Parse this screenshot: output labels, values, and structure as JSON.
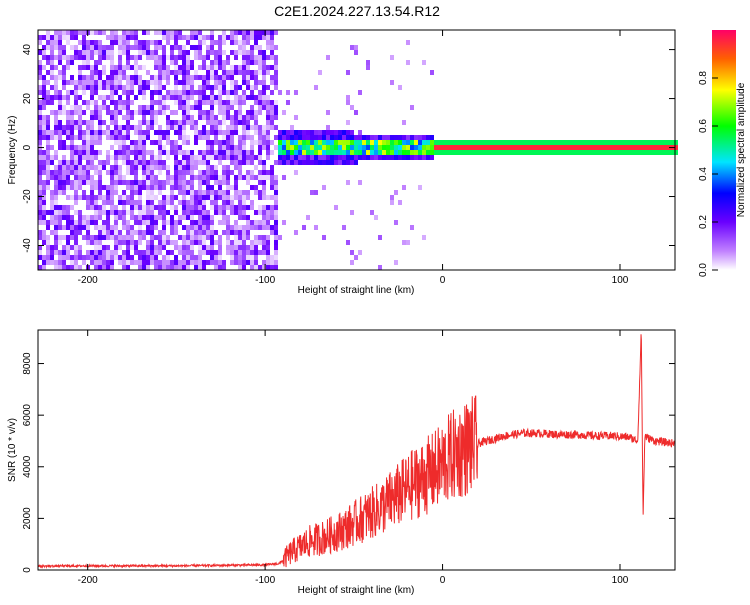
{
  "title": "C2E1.2024.227.13.54.R12",
  "chart_data": [
    {
      "type": "heatmap",
      "xlabel": "Height of straight line (km)",
      "ylabel": "Frequency (Hz)",
      "xlim": [
        -228,
        131
      ],
      "ylim": [
        -50,
        48
      ],
      "xticks": [
        -200,
        -100,
        0,
        100
      ],
      "yticks": [
        -40,
        -20,
        0,
        20,
        40
      ],
      "colorbar": {
        "label": "Normalized spectral amplitude",
        "range": [
          0,
          1
        ],
        "ticks": [
          0.0,
          0.2,
          0.4,
          0.6,
          0.8
        ],
        "tick_labels": [
          "0.0",
          "0.2",
          "0.4",
          "0.6",
          "0.8"
        ],
        "colormap": [
          "#ffffff",
          "#8a2be2",
          "#0000ff",
          "#00ffff",
          "#00ff00",
          "#ffff00",
          "#ff0000"
        ]
      },
      "regions": [
        {
          "x": [
            -228,
            -92
          ],
          "pattern": "broadband noise",
          "level": 0.15
        },
        {
          "x": [
            -92,
            -5
          ],
          "pattern": "signal near 0 Hz with spread",
          "level": 0.45
        },
        {
          "x": [
            -5,
            131
          ],
          "pattern": "narrow line at 0 Hz",
          "level": 0.95
        }
      ]
    },
    {
      "type": "line",
      "xlabel": "Height of straight line (km)",
      "ylabel": "SNR (10 * v/v)",
      "xlim": [
        -228,
        131
      ],
      "ylim": [
        0,
        9300
      ],
      "xticks": [
        -200,
        -100,
        0,
        100
      ],
      "yticks": [
        0,
        2000,
        4000,
        6000,
        8000
      ],
      "series": [
        {
          "color": "#ee2b2b",
          "x": [
            -228,
            -200,
            -150,
            -100,
            -92,
            -85,
            -75,
            -65,
            -55,
            -45,
            -35,
            -25,
            -15,
            -5,
            5,
            15,
            25,
            35,
            45,
            55,
            65,
            75,
            85,
            95,
            105,
            110,
            112,
            113,
            114,
            116,
            120,
            131
          ],
          "y": [
            150,
            160,
            160,
            200,
            250,
            700,
            1100,
            1300,
            1600,
            2000,
            2400,
            2900,
            3400,
            3800,
            4400,
            4800,
            5000,
            5200,
            5300,
            5300,
            5250,
            5250,
            5200,
            5200,
            5150,
            5000,
            9300,
            2000,
            5200,
            5100,
            5000,
            4900
          ]
        }
      ]
    }
  ]
}
